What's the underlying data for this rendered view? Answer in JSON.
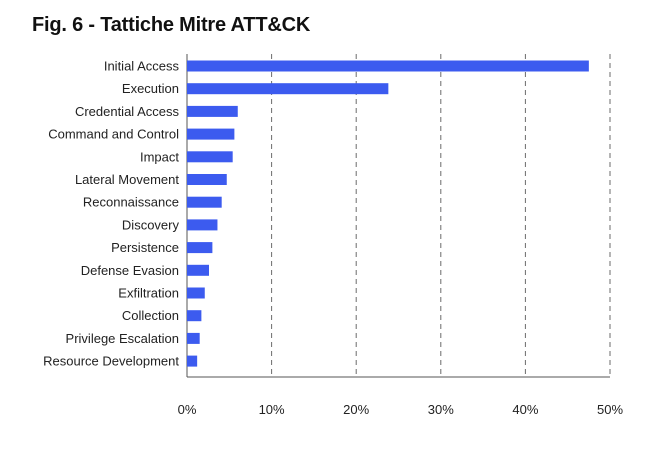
{
  "title": "Fig. 6 - Tattiche Mitre ATT&CK",
  "chart_data": {
    "type": "bar",
    "orientation": "horizontal",
    "title": "Fig. 6 - Tattiche Mitre ATT&CK",
    "xlabel": "",
    "ylabel": "",
    "categories": [
      "Initial Access",
      "Execution",
      "Credential Access",
      "Command and Control",
      "Impact",
      "Lateral Movement",
      "Reconnaissance",
      "Discovery",
      "Persistence",
      "Defense Evasion",
      "Exfiltration",
      "Collection",
      "Privilege Escalation",
      "Resource Development"
    ],
    "values": [
      47.5,
      23.8,
      6.0,
      5.6,
      5.4,
      4.7,
      4.1,
      3.6,
      3.0,
      2.6,
      2.1,
      1.7,
      1.5,
      1.2
    ],
    "xlim": [
      0,
      50
    ],
    "xticks": [
      0,
      10,
      20,
      30,
      40,
      50
    ],
    "xtick_labels": [
      "0%",
      "10%",
      "20%",
      "30%",
      "40%",
      "50%"
    ],
    "grid": "vertical dashed",
    "legend": "none",
    "bar_color": "#3c5bef",
    "grid_color": "#6b6b6b",
    "axis_color": "#555555"
  }
}
